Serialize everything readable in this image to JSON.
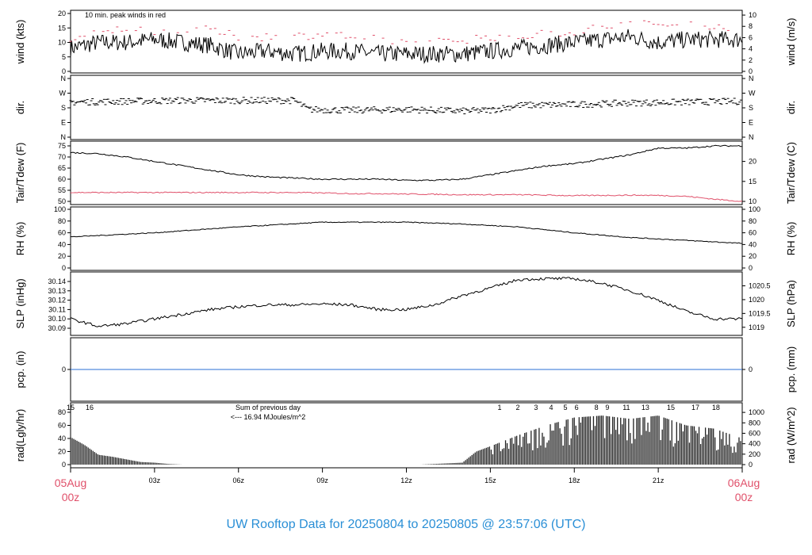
{
  "title": "UW Rooftop Data for 20250804  to  20250805 @ 23:57:06  (UTC)",
  "colors": {
    "title": "#2a8fd6",
    "date": "#e0506a",
    "peak": "#e0506a",
    "dew": "#e0506a",
    "pcp": "#2a6fd6",
    "annot": "#a040e0"
  },
  "x_axis": {
    "ticks": [
      "",
      "03z",
      "06z",
      "09z",
      "12z",
      "15z",
      "18z",
      "21z",
      ""
    ],
    "start": [
      "05Aug",
      "00z"
    ],
    "end": [
      "06Aug",
      "00z"
    ]
  },
  "chart_data": [
    {
      "type": "line",
      "ylabel": "wind (kts)",
      "ylabel_right": "wind (m/s)",
      "ylim": [
        0,
        20
      ],
      "yticks": [
        0,
        5,
        10,
        15,
        20
      ],
      "rticks": [
        0,
        2,
        4,
        6,
        8,
        10
      ],
      "annotation": "10 min. peak winds in red",
      "hours": [
        0,
        1,
        2,
        3,
        4,
        5,
        6,
        7,
        8,
        9,
        10,
        11,
        12,
        13,
        14,
        15,
        16,
        17,
        18,
        19,
        20,
        21,
        22,
        23,
        24
      ],
      "series": [
        {
          "name": "wind",
          "values": [
            8,
            10,
            10,
            11,
            10,
            9,
            6,
            7,
            6,
            7,
            7,
            6,
            6,
            6,
            6,
            7,
            8,
            9,
            10,
            11,
            12,
            10,
            11,
            11,
            11
          ]
        },
        {
          "name": "peak",
          "values": [
            11,
            13,
            15,
            14,
            15,
            14,
            12,
            12,
            12,
            13,
            12,
            11,
            10,
            10,
            11,
            12,
            12,
            13,
            14,
            15,
            17,
            16,
            16,
            16,
            15
          ]
        }
      ]
    },
    {
      "type": "scatter",
      "ylabel": "dir.",
      "ylabel_right": "dir.",
      "yticks": [
        "N",
        "E",
        "S",
        "W",
        "N"
      ],
      "ylim": [
        0,
        360
      ],
      "hours": [
        0,
        2,
        4,
        6,
        8,
        8.5,
        10,
        12,
        14,
        15,
        16,
        18,
        20,
        22,
        24
      ],
      "values": [
        215,
        220,
        225,
        225,
        225,
        170,
        165,
        170,
        160,
        165,
        195,
        200,
        210,
        215,
        220
      ]
    },
    {
      "type": "line",
      "ylabel": "Tair/Tdew (F)",
      "ylabel_right": "Tair/Tdew (C)",
      "ylim": [
        49,
        76
      ],
      "yticks": [
        50,
        55,
        60,
        65,
        70,
        75
      ],
      "rticks": [
        10,
        15,
        20
      ],
      "hours": [
        0,
        1,
        2,
        3,
        4,
        5,
        6,
        7,
        8,
        9,
        10,
        11,
        12,
        13,
        14,
        15,
        16,
        17,
        18,
        19,
        20,
        21,
        22,
        23,
        24
      ],
      "series": [
        {
          "name": "Tair",
          "values": [
            72,
            71.5,
            70,
            68,
            66,
            64,
            62,
            61,
            60.5,
            60,
            60,
            60,
            59.5,
            59.5,
            60,
            62,
            64,
            66,
            67,
            69,
            71,
            74,
            74,
            75,
            75
          ]
        },
        {
          "name": "Tdew",
          "values": [
            54,
            54,
            54,
            54,
            54,
            54,
            54,
            54,
            54,
            53.8,
            53.5,
            53.5,
            53.3,
            53.2,
            53,
            53,
            53,
            52.8,
            52.6,
            52.7,
            52.8,
            52.7,
            52.3,
            51,
            50
          ]
        }
      ]
    },
    {
      "type": "line",
      "ylabel": "RH (%)",
      "ylabel_right": "RH (%)",
      "ylim": [
        0,
        100
      ],
      "yticks": [
        0,
        20,
        40,
        60,
        80,
        100
      ],
      "hours": [
        0,
        3,
        6,
        9,
        12,
        14,
        16,
        18,
        20,
        22,
        24
      ],
      "values": [
        53,
        60,
        70,
        78,
        78,
        75,
        70,
        60,
        52,
        47,
        42
      ]
    },
    {
      "type": "line",
      "ylabel": "SLP (inHg)",
      "ylabel_right": "SLP (hPa)",
      "ylim": [
        30.084,
        30.148
      ],
      "yticks": [
        30.09,
        30.1,
        30.11,
        30.12,
        30.13,
        30.14
      ],
      "rticks": [
        "1019",
        "1019.5",
        "1020",
        "1020.5"
      ],
      "hours": [
        0,
        1,
        2,
        3,
        4,
        5,
        6,
        7,
        8,
        9,
        10,
        11,
        12,
        13,
        14,
        15,
        16,
        17,
        18,
        19,
        20,
        21,
        22,
        23,
        24
      ],
      "values": [
        30.1,
        30.092,
        30.095,
        30.1,
        30.105,
        30.11,
        30.113,
        30.115,
        30.115,
        30.116,
        30.115,
        30.11,
        30.11,
        30.115,
        30.125,
        30.133,
        30.142,
        30.143,
        30.143,
        30.138,
        30.13,
        30.12,
        30.108,
        30.1,
        30.1
      ]
    },
    {
      "type": "line",
      "ylabel": "pcp. (in)",
      "ylabel_right": "pcp. (mm)",
      "yticks": [
        0
      ],
      "values": [
        0,
        0
      ]
    },
    {
      "type": "bar",
      "ylabel": "rad(Lgly/hr)",
      "ylabel_right": "rad (W/m^2)",
      "ylim": [
        0,
        90
      ],
      "yticks": [
        0,
        20,
        40,
        60,
        80
      ],
      "rticks": [
        0,
        200,
        400,
        600,
        800,
        1000
      ],
      "hours": [
        0,
        0.5,
        1,
        1.5,
        2,
        2.5,
        3,
        3.5,
        4,
        12.5,
        13,
        14,
        14.5,
        15,
        16,
        17,
        18,
        19,
        20,
        21,
        22,
        23,
        24
      ],
      "values": [
        42,
        30,
        15,
        12,
        8,
        4,
        3,
        1,
        0,
        0,
        1,
        3,
        20,
        28,
        45,
        60,
        72,
        75,
        70,
        75,
        60,
        55,
        40
      ],
      "annotations": [
        "Sum of previous day",
        "<--- 16.94 MJoules/m^2"
      ],
      "hour_labels": [
        {
          "h": 0,
          "t": "15"
        },
        {
          "h": 0.68,
          "t": "16"
        },
        {
          "h": 15.33,
          "t": "1"
        },
        {
          "h": 15.98,
          "t": "2"
        },
        {
          "h": 16.63,
          "t": "3"
        },
        {
          "h": 17.17,
          "t": "4"
        },
        {
          "h": 17.68,
          "t": "5"
        },
        {
          "h": 18.08,
          "t": "6"
        },
        {
          "h": 18.79,
          "t": "8"
        },
        {
          "h": 19.18,
          "t": "9"
        },
        {
          "h": 19.86,
          "t": "11"
        },
        {
          "h": 20.54,
          "t": "13"
        },
        {
          "h": 21.45,
          "t": "15"
        },
        {
          "h": 22.33,
          "t": "17"
        },
        {
          "h": 23.06,
          "t": "18"
        }
      ]
    }
  ]
}
